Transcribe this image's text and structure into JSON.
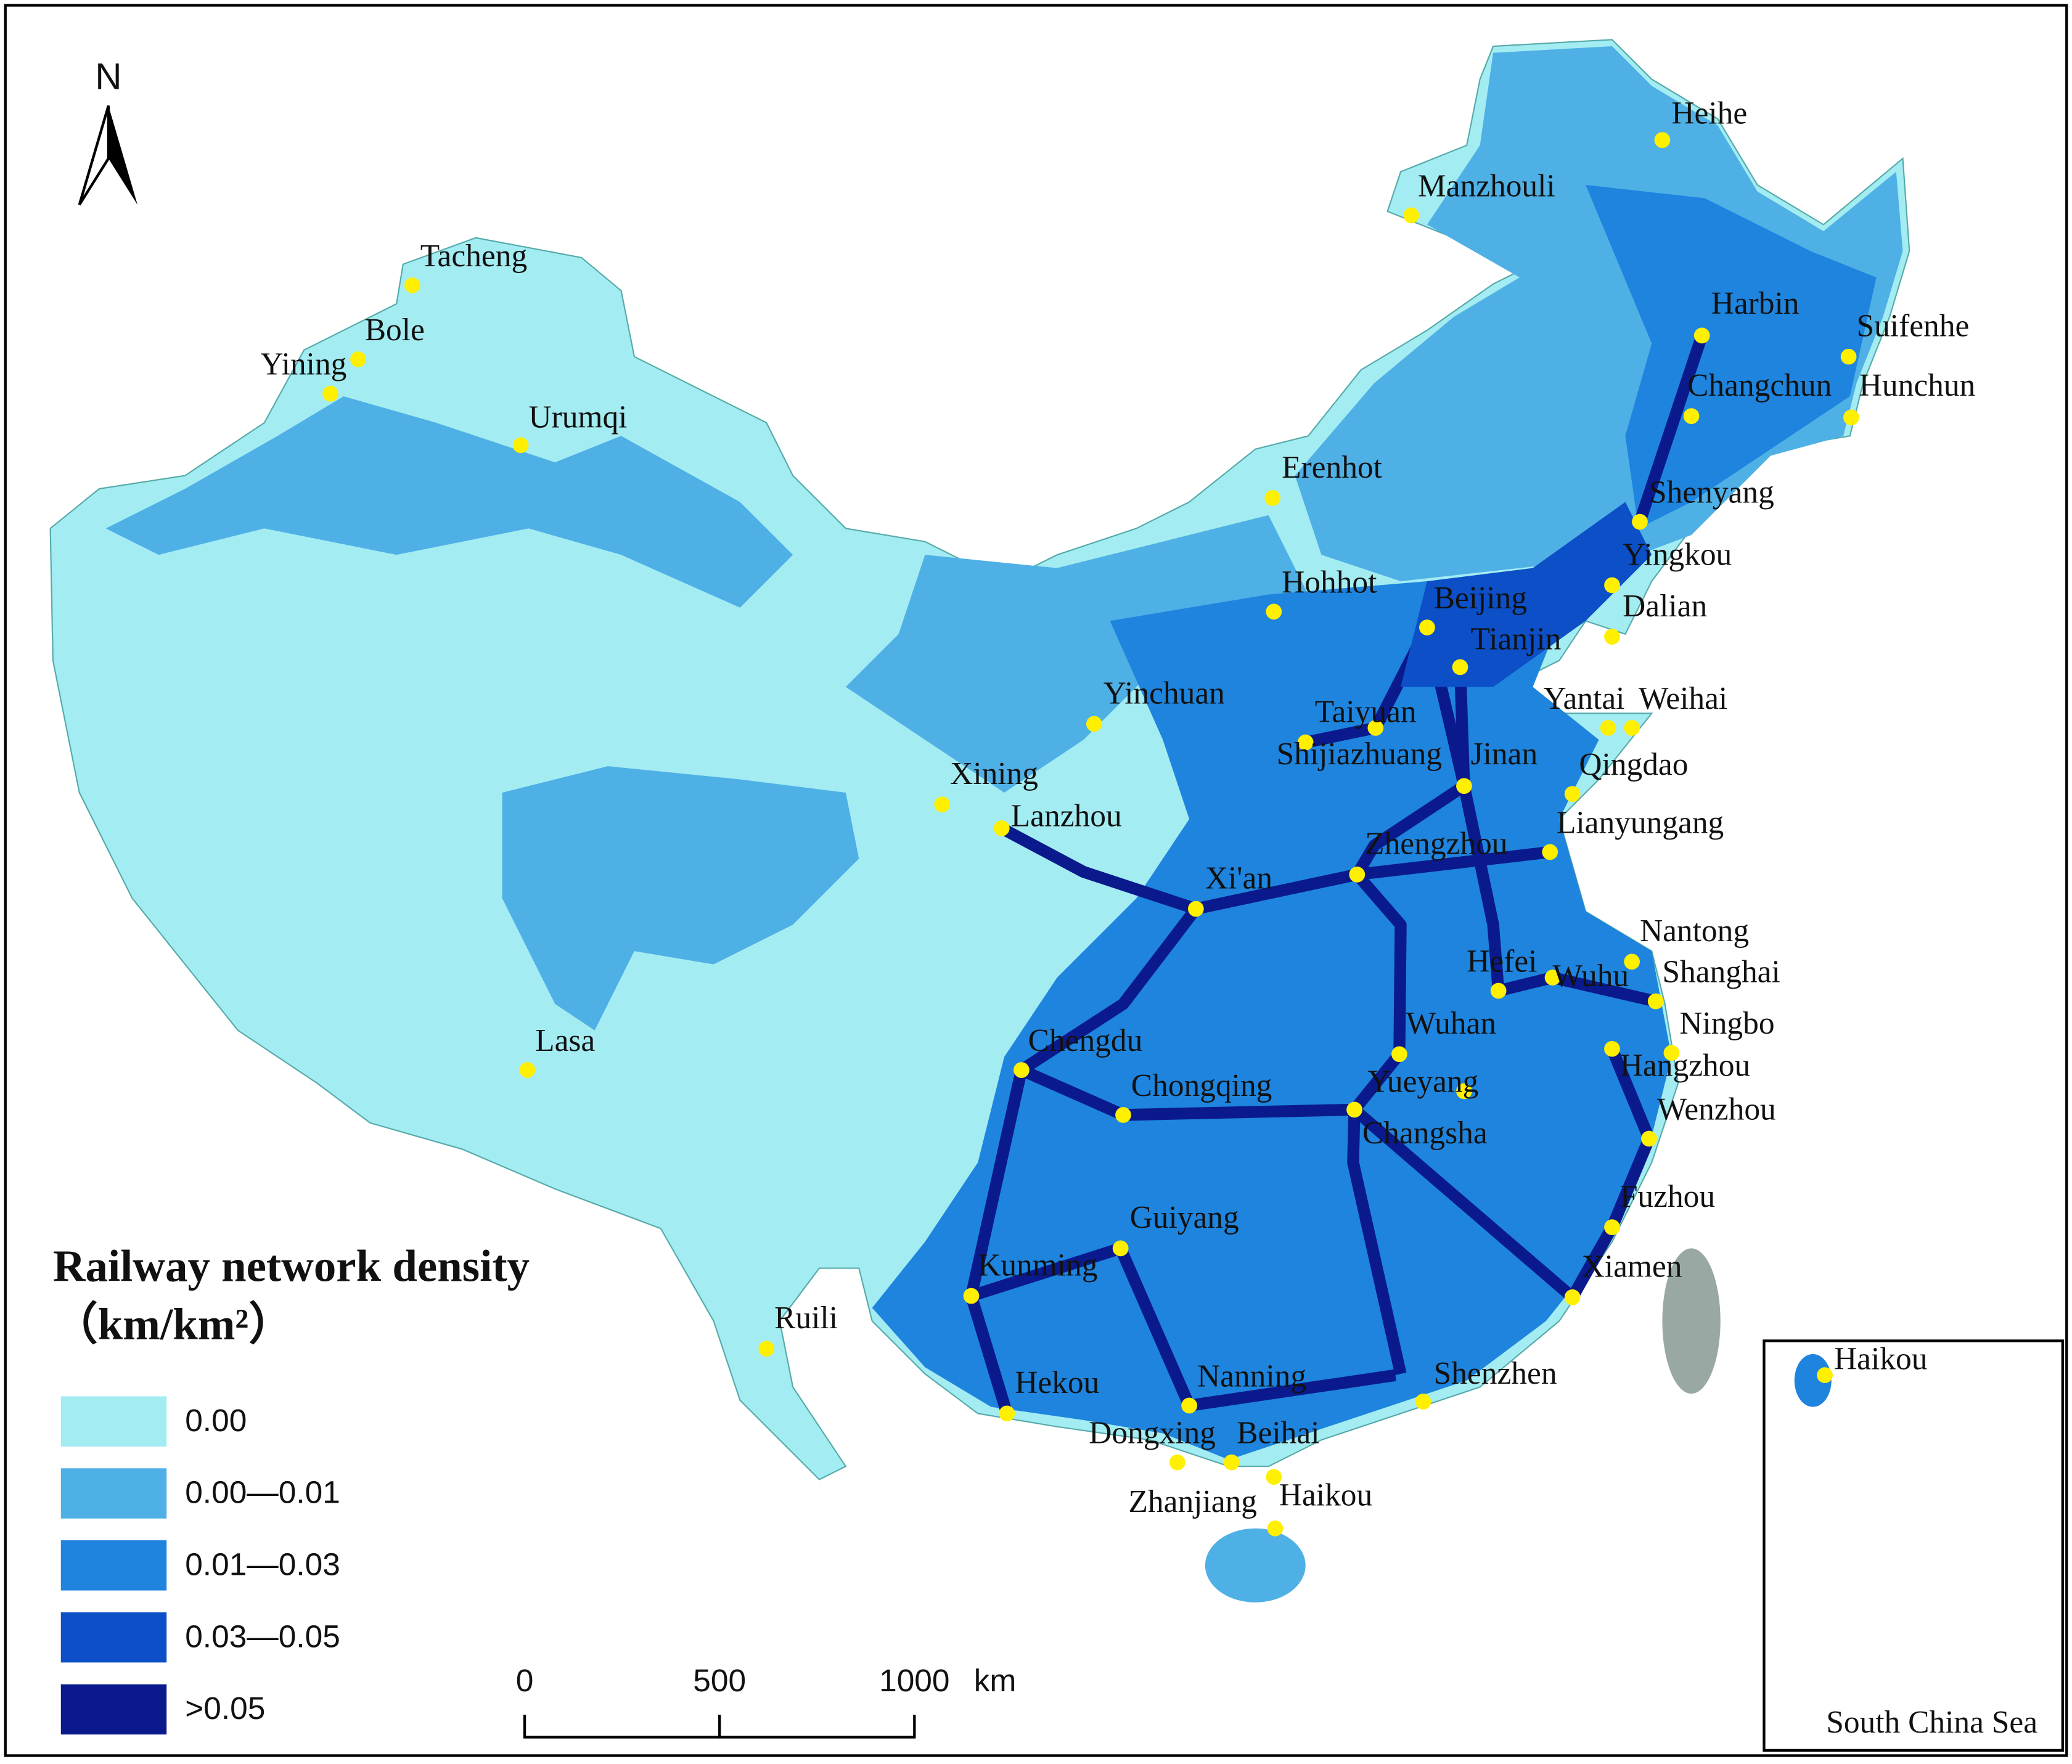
{
  "map": {
    "north_label": "N",
    "legend": {
      "title": "Railway network density",
      "unit": "（km/km²）",
      "classes": [
        {
          "label": "0.00",
          "color": "#a3ecf2"
        },
        {
          "label": "0.00—0.01",
          "color": "#4fb0e6"
        },
        {
          "label": "0.01—0.03",
          "color": "#1e84de"
        },
        {
          "label": "0.03—0.05",
          "color": "#0c4fc6"
        },
        {
          "label": ">0.05",
          "color": "#0a1a8c"
        }
      ]
    },
    "scale_bar": {
      "ticks": [
        0,
        500,
        1000
      ],
      "unit": "km"
    },
    "cities": [
      "Heihe",
      "Manzhouli",
      "Tacheng",
      "Bole",
      "Yining",
      "Urumqi",
      "Harbin",
      "Suifenhe",
      "Changchun",
      "Hunchun",
      "Erenhot",
      "Shenyang",
      "Yingkou",
      "Dalian",
      "Hohhot",
      "Beijing",
      "Tianjin",
      "Yinchuan",
      "Taiyuan",
      "Yantai",
      "Weihai",
      "Shijiazhuang",
      "Jinan",
      "Qingdao",
      "Xining",
      "Lanzhou",
      "Lianyungang",
      "Zhengzhou",
      "Xi'an",
      "Nantong",
      "Hefei",
      "Wuhu",
      "Shanghai",
      "Wuhan",
      "Ningbo",
      "Hangzhou",
      "Lasa",
      "Chengdu",
      "Yueyang",
      "Chongqing",
      "Changsha",
      "Wenzhou",
      "Fuzhou",
      "Guiyang",
      "Xiamen",
      "Kunming",
      "Ruili",
      "Shenzhen",
      "Hekou",
      "Nanning",
      "Dongxing",
      "Beihai",
      "Zhanjiang",
      "Haikou"
    ],
    "inset": {
      "city": "Haikou",
      "label": "South China Sea"
    }
  }
}
